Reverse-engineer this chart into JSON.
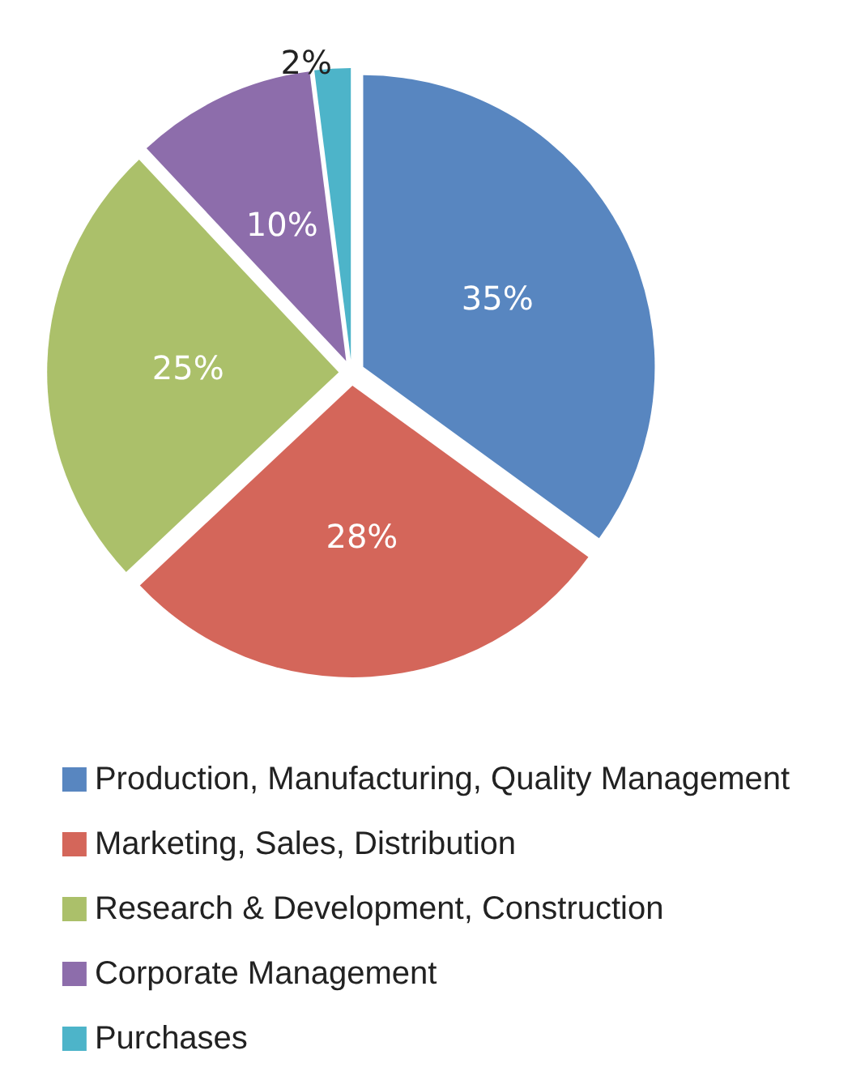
{
  "chart_data": {
    "type": "pie",
    "categories": [
      "Production, Manufacturing, Quality Management",
      "Marketing, Sales, Distribution",
      "Research & Development, Construction",
      "Corporate Management",
      "Purchases"
    ],
    "values": [
      35,
      28,
      25,
      10,
      2
    ],
    "colors": [
      "#5886c0",
      "#d4665a",
      "#abc06a",
      "#8d6dab",
      "#4db4c9"
    ],
    "value_labels": [
      "35%",
      "28%",
      "25%",
      "10%",
      "2%"
    ],
    "legend": "bottom"
  }
}
